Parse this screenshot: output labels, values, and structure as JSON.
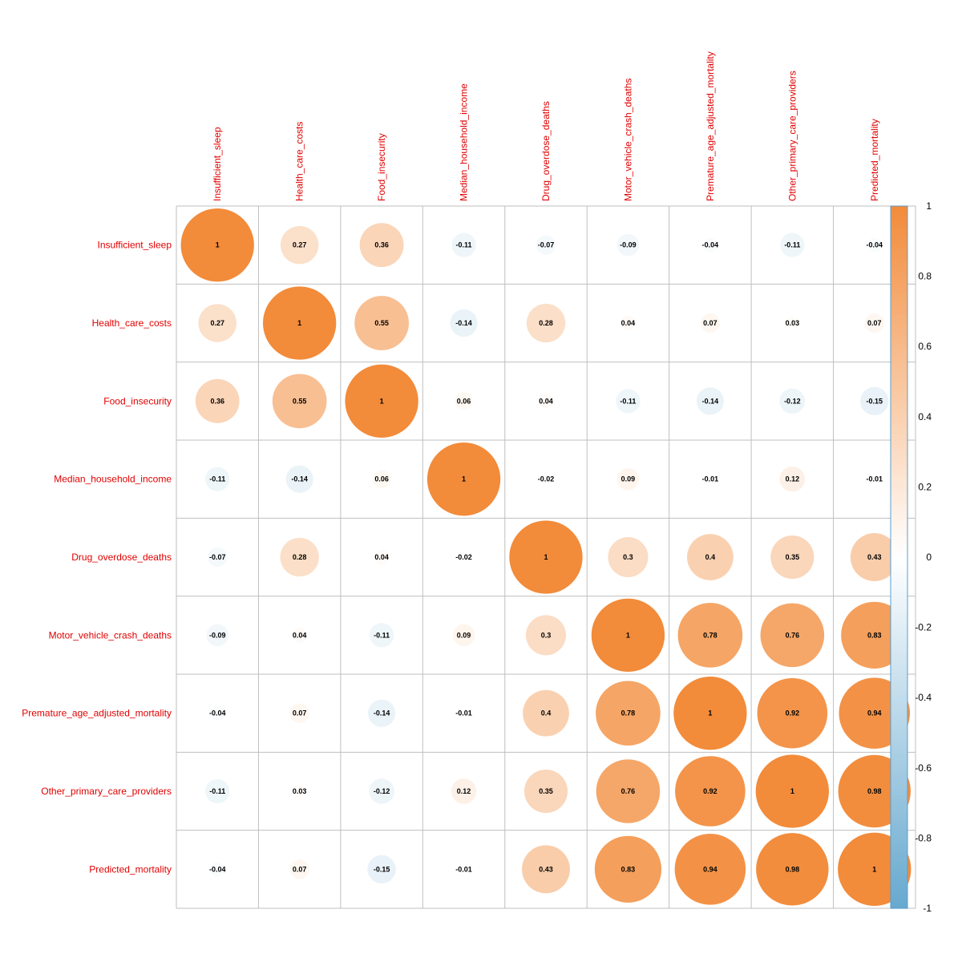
{
  "chart_data": {
    "type": "heatmap",
    "variables": [
      "Insufficient_sleep",
      "Health_care_costs",
      "Food_insecurity",
      "Median_household_income",
      "Drug_overdose_deaths",
      "Motor_vehicle_crash_deaths",
      "Premature_age_adjusted_mortality",
      "Other_primary_care_providers",
      "Predicted_mortality"
    ],
    "matrix": [
      [
        "1",
        "0.27",
        "0.36",
        "-0.11",
        "-0.07",
        "-0.09",
        "-0.04",
        "-0.11",
        "-0.04"
      ],
      [
        "0.27",
        "1",
        "0.55",
        "-0.14",
        "0.28",
        "0.04",
        "0.07",
        "0.03",
        "0.07"
      ],
      [
        "0.36",
        "0.55",
        "1",
        "0.06",
        "0.04",
        "-0.11",
        "-0.14",
        "-0.12",
        "-0.15"
      ],
      [
        "-0.11",
        "-0.14",
        "0.06",
        "1",
        "-0.02",
        "0.09",
        "-0.01",
        "0.12",
        "-0.01"
      ],
      [
        "-0.07",
        "0.28",
        "0.04",
        "-0.02",
        "1",
        "0.3",
        "0.4",
        "0.35",
        "0.43"
      ],
      [
        "-0.09",
        "0.04",
        "-0.11",
        "0.09",
        "0.3",
        "1",
        "0.78",
        "0.76",
        "0.83"
      ],
      [
        "-0.04",
        "0.07",
        "-0.14",
        "-0.01",
        "0.4",
        "0.78",
        "1",
        "0.92",
        "0.94"
      ],
      [
        "-0.11",
        "0.03",
        "-0.12",
        "0.12",
        "0.35",
        "0.76",
        "0.92",
        "1",
        "0.98"
      ],
      [
        "-0.04",
        "0.07",
        "-0.15",
        "-0.01",
        "0.43",
        "0.83",
        "0.94",
        "0.98",
        "1"
      ]
    ],
    "color_scale": {
      "range": [
        -1,
        1
      ],
      "ticks": [
        "1",
        "0.8",
        "0.6",
        "0.4",
        "0.2",
        "0",
        "-0.2",
        "-0.4",
        "-0.6",
        "-0.8",
        "-1"
      ],
      "colors": {
        "negative": "#67A9CF",
        "zero": "#FFFFFF",
        "positive": "#F28B3A"
      }
    },
    "grid": true,
    "legend_position": "right"
  }
}
